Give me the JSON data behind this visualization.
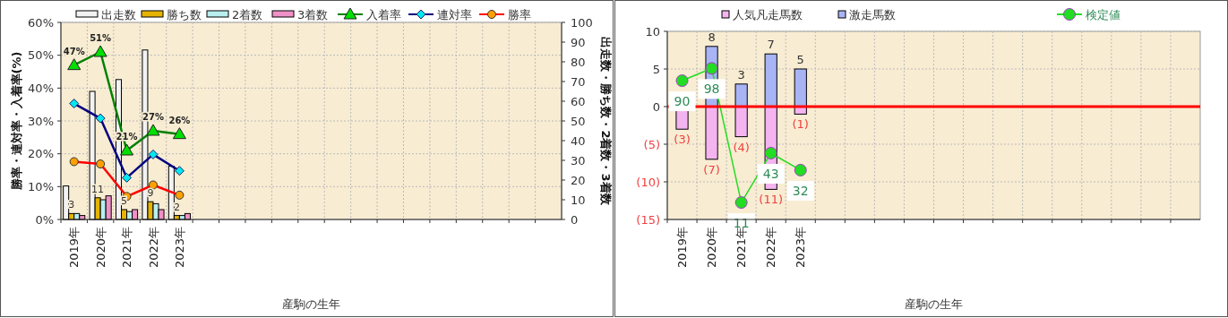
{
  "chart_data": [
    {
      "type": "bar",
      "xlabel": "産駒の生年",
      "ylabel": "勝率・連対率・入着率(%)",
      "y2label": "出走数・勝ち数・2着数・3着数",
      "categories": [
        "2019年",
        "2020年",
        "2021年",
        "2022年",
        "2023年",
        null,
        null,
        null,
        null,
        null,
        null,
        null,
        null,
        null,
        null,
        null,
        null,
        null,
        null
      ],
      "ylim": [
        0,
        60
      ],
      "yticks": [
        {
          "value": 0,
          "label": "0%"
        },
        {
          "value": 10,
          "label": "10%"
        },
        {
          "value": 20,
          "label": "20%"
        },
        {
          "value": 30,
          "label": "30%"
        },
        {
          "value": 40,
          "label": "40%"
        },
        {
          "value": 50,
          "label": "50%"
        },
        {
          "value": 60,
          "label": "60%"
        }
      ],
      "y2lim": [
        0,
        100
      ],
      "y2ticks": [
        0,
        10,
        20,
        30,
        40,
        50,
        60,
        70,
        80,
        90,
        100
      ],
      "grid": true,
      "legend": "top",
      "series": [
        {
          "name": "出走数",
          "axis": "y2",
          "color": "#f2f2f2",
          "values": [
            17,
            65,
            71,
            86,
            27,
            null,
            null,
            null,
            null,
            null,
            null,
            null,
            null,
            null,
            null,
            null,
            null,
            null,
            null
          ]
        },
        {
          "name": "勝ち数",
          "axis": "y2",
          "color": "#e6b400",
          "values": [
            3,
            11,
            5,
            9,
            2,
            null,
            null,
            null,
            null,
            null,
            null,
            null,
            null,
            null,
            null,
            null,
            null,
            null,
            null
          ],
          "value_labels": [
            "3",
            "11",
            "5",
            "9",
            "2",
            null,
            null,
            null,
            null,
            null,
            null,
            null,
            null,
            null,
            null,
            null,
            null,
            null,
            null
          ]
        },
        {
          "name": "2着数",
          "axis": "y2",
          "color": "#b8eeee",
          "values": [
            3,
            10,
            4,
            8,
            2,
            null,
            null,
            null,
            null,
            null,
            null,
            null,
            null,
            null,
            null,
            null,
            null,
            null,
            null
          ]
        },
        {
          "name": "3着数",
          "axis": "y2",
          "color": "#f090c8",
          "values": [
            2,
            12,
            5,
            5,
            3,
            null,
            null,
            null,
            null,
            null,
            null,
            null,
            null,
            null,
            null,
            null,
            null,
            null,
            null
          ]
        },
        {
          "name": "入着率",
          "type": "line",
          "marker": "triangle",
          "color": "#008000",
          "values": [
            47,
            51,
            21,
            27,
            26,
            null,
            null,
            null,
            null,
            null,
            null,
            null,
            null,
            null,
            null,
            null,
            null,
            null,
            null
          ],
          "value_labels": [
            "47%",
            "51%",
            "21%",
            "27%",
            "26%",
            null,
            null,
            null,
            null,
            null,
            null,
            null,
            null,
            null,
            null,
            null,
            null,
            null,
            null
          ]
        },
        {
          "name": "連対率",
          "type": "line",
          "marker": "diamond",
          "color": "#000080",
          "values": [
            35.3,
            30.8,
            12.7,
            19.8,
            14.8,
            null,
            null,
            null,
            null,
            null,
            null,
            null,
            null,
            null,
            null,
            null,
            null,
            null,
            null
          ]
        },
        {
          "name": "勝率",
          "type": "line",
          "marker": "circle",
          "color": "#ff0000",
          "values": [
            17.6,
            16.9,
            7.0,
            10.5,
            7.4,
            null,
            null,
            null,
            null,
            null,
            null,
            null,
            null,
            null,
            null,
            null,
            null,
            null,
            null
          ]
        }
      ]
    },
    {
      "type": "bar",
      "stacked": true,
      "xlabel": "産駒の生年",
      "categories": [
        "2019年",
        "2020年",
        "2021年",
        "2022年",
        "2023年",
        null,
        null,
        null,
        null,
        null,
        null,
        null,
        null,
        null,
        null,
        null,
        null,
        null
      ],
      "ylim": [
        -15,
        10
      ],
      "yticks": [
        {
          "value": -15,
          "label": "(15)"
        },
        {
          "value": -10,
          "label": "(10)"
        },
        {
          "value": -5,
          "label": "(5)"
        },
        0,
        5,
        10
      ],
      "grid": true,
      "legend": "top",
      "ref_lines": [
        {
          "axis": "y",
          "value": 0,
          "color": "#ff0000"
        }
      ],
      "y2lim": [
        0,
        122
      ],
      "series": [
        {
          "name": "人気凡走馬数",
          "color": "#f4b4f0",
          "values": [
            -3,
            -7,
            -4,
            -11,
            -1,
            null,
            null,
            null,
            null,
            null,
            null,
            null,
            null,
            null,
            null,
            null,
            null,
            null
          ],
          "value_labels": [
            "(3)",
            "(7)",
            "(4)",
            "(11)",
            "(1)",
            null,
            null,
            null,
            null,
            null,
            null,
            null,
            null,
            null,
            null,
            null,
            null,
            null
          ]
        },
        {
          "name": "激走馬数",
          "color": "#a8b4f4",
          "values": [
            0,
            8,
            3,
            7,
            5,
            null,
            null,
            null,
            null,
            null,
            null,
            null,
            null,
            null,
            null,
            null,
            null,
            null
          ],
          "value_labels": [
            null,
            "8",
            "3",
            "7",
            "5",
            null,
            null,
            null,
            null,
            null,
            null,
            null,
            null,
            null,
            null,
            null,
            null,
            null
          ]
        },
        {
          "name": "検定値",
          "type": "line",
          "axis": "y2",
          "marker": "circle",
          "color": "#22dd22",
          "values": [
            90,
            98,
            11,
            43,
            32,
            null,
            null,
            null,
            null,
            null,
            null,
            null,
            null,
            null,
            null,
            null,
            null,
            null
          ],
          "value_labels": [
            "90",
            "98",
            "11",
            "43",
            "32",
            null,
            null,
            null,
            null,
            null,
            null,
            null,
            null,
            null,
            null,
            null,
            null,
            null
          ]
        }
      ]
    }
  ]
}
